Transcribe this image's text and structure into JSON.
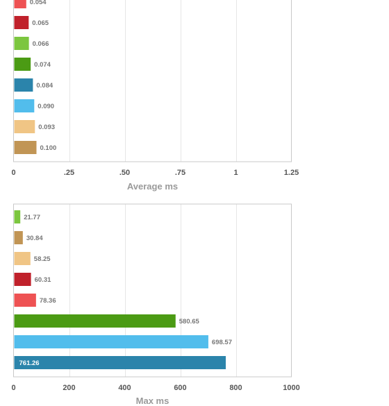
{
  "chart_data": [
    {
      "type": "bar",
      "orientation": "horizontal",
      "xlabel": "Average ms",
      "xlim": [
        0,
        1.25
      ],
      "tick_values": [
        0,
        0.25,
        0.5,
        0.75,
        1,
        1.25
      ],
      "tick_labels": [
        "0",
        ".25",
        ".50",
        ".75",
        "1",
        "1.25"
      ],
      "grid": true,
      "bars": [
        {
          "value": 0.054,
          "label": "0.054",
          "color": "#ee5253"
        },
        {
          "value": 0.065,
          "label": "0.065",
          "color": "#c0212b"
        },
        {
          "value": 0.066,
          "label": "0.066",
          "color": "#7cc63f"
        },
        {
          "value": 0.074,
          "label": "0.074",
          "color": "#4b9b14"
        },
        {
          "value": 0.084,
          "label": "0.084",
          "color": "#2b84ab"
        },
        {
          "value": 0.09,
          "label": "0.090",
          "color": "#52bdec"
        },
        {
          "value": 0.093,
          "label": "0.093",
          "color": "#f0c585"
        },
        {
          "value": 0.1,
          "label": "0.100",
          "color": "#c19555"
        }
      ]
    },
    {
      "type": "bar",
      "orientation": "horizontal",
      "xlabel": "Max ms",
      "xlim": [
        0,
        1000
      ],
      "tick_values": [
        0,
        200,
        400,
        600,
        800,
        1000
      ],
      "tick_labels": [
        "0",
        "200",
        "400",
        "600",
        "800",
        "1000"
      ],
      "grid": true,
      "bars": [
        {
          "value": 21.77,
          "label": "21.77",
          "color": "#7cc63f"
        },
        {
          "value": 30.84,
          "label": "30.84",
          "color": "#c19555"
        },
        {
          "value": 58.25,
          "label": "58.25",
          "color": "#f0c585"
        },
        {
          "value": 60.31,
          "label": "60.31",
          "color": "#c0212b"
        },
        {
          "value": 78.36,
          "label": "78.36",
          "color": "#ee5253"
        },
        {
          "value": 580.65,
          "label": "580.65",
          "color": "#4b9b14"
        },
        {
          "value": 698.57,
          "label": "698.57",
          "color": "#52bdec"
        },
        {
          "value": 761.26,
          "label": "761.26",
          "color": "#2b84ab"
        }
      ]
    }
  ]
}
